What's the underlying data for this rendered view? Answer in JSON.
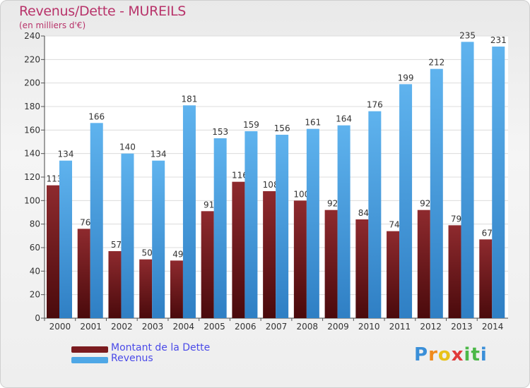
{
  "header": {
    "title": "Revenus/Dette - MUREILS",
    "subtitle": "(en milliers d'€)"
  },
  "chart_data": {
    "type": "bar",
    "categories": [
      "2000",
      "2001",
      "2002",
      "2003",
      "2004",
      "2005",
      "2006",
      "2007",
      "2008",
      "2009",
      "2010",
      "2011",
      "2012",
      "2013",
      "2014"
    ],
    "series": [
      {
        "name": "Montant de la Dette",
        "values": [
          113,
          76,
          57,
          50,
          49,
          91,
          116,
          108,
          100,
          92,
          84,
          74,
          92,
          79,
          67
        ],
        "color": "#7a1b1f"
      },
      {
        "name": "Revenus",
        "values": [
          134,
          166,
          140,
          134,
          181,
          153,
          159,
          156,
          161,
          164,
          176,
          199,
          212,
          235,
          231
        ],
        "color": "#4ea7e6"
      }
    ],
    "ylim": [
      0,
      240
    ],
    "yticks": [
      0,
      20,
      40,
      60,
      80,
      100,
      120,
      140,
      160,
      180,
      200,
      220,
      240
    ],
    "grid": true,
    "legend": "bottom-left"
  },
  "legend": {
    "items": [
      {
        "label": "Montant de la Dette",
        "color": "#7a1b1f"
      },
      {
        "label": "Revenus",
        "color": "#4ea7e6"
      }
    ]
  },
  "logo": {
    "letters": [
      "P",
      "r",
      "o",
      "x",
      "i",
      "t",
      "i"
    ],
    "colors": [
      "#3a8fd8",
      "#f08a1c",
      "#e8c21a",
      "#e03a3a",
      "#4cb848",
      "#4cb848",
      "#3a8fd8"
    ]
  }
}
